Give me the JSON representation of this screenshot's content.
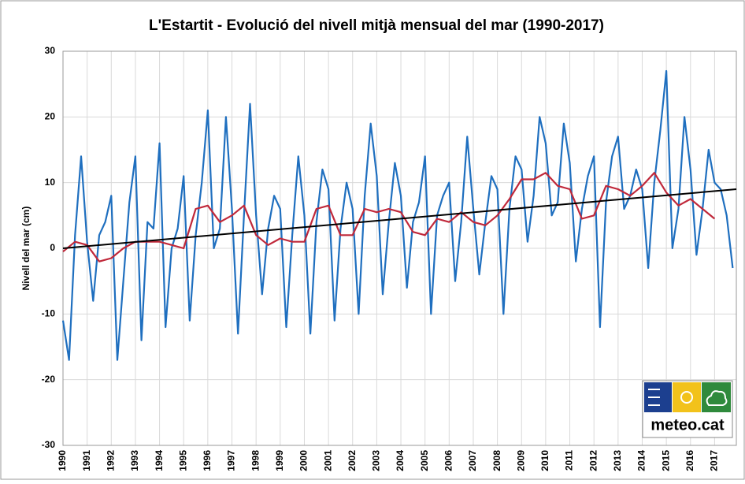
{
  "chart_data": {
    "type": "line",
    "title": "L'Estartit - Evolució del nivell mitjà mensual del mar (1990-2017)",
    "y_label": "Nivell del mar (cm)",
    "logo_text": "meteo.cat",
    "xlim": [
      1990,
      2017.9
    ],
    "ylim": [
      -30,
      30
    ],
    "yticks": [
      -30,
      -20,
      -10,
      0,
      10,
      20,
      30
    ],
    "xticks": [
      1990,
      1991,
      1992,
      1993,
      1994,
      1995,
      1996,
      1997,
      1998,
      1999,
      2000,
      2001,
      2002,
      2003,
      2004,
      2005,
      2006,
      2007,
      2008,
      2009,
      2010,
      2011,
      2012,
      2013,
      2014,
      2015,
      2016,
      2017
    ],
    "grid": true,
    "series": [
      {
        "color": "#1f6fbf",
        "width": 2.2,
        "x": [
          1990,
          1990.25,
          1990.5,
          1990.75,
          1991,
          1991.25,
          1991.5,
          1991.75,
          1992,
          1992.25,
          1992.5,
          1992.75,
          1993,
          1993.25,
          1993.5,
          1993.75,
          1994,
          1994.25,
          1994.5,
          1994.75,
          1995,
          1995.25,
          1995.5,
          1995.75,
          1996,
          1996.25,
          1996.5,
          1996.75,
          1997,
          1997.25,
          1997.5,
          1997.75,
          1998,
          1998.25,
          1998.5,
          1998.75,
          1999,
          1999.25,
          1999.5,
          1999.75,
          2000,
          2000.25,
          2000.5,
          2000.75,
          2001,
          2001.25,
          2001.5,
          2001.75,
          2002,
          2002.25,
          2002.5,
          2002.75,
          2003,
          2003.25,
          2003.5,
          2003.75,
          2004,
          2004.25,
          2004.5,
          2004.75,
          2005,
          2005.25,
          2005.5,
          2005.75,
          2006,
          2006.25,
          2006.5,
          2006.75,
          2007,
          2007.25,
          2007.5,
          2007.75,
          2008,
          2008.25,
          2008.5,
          2008.75,
          2009,
          2009.25,
          2009.5,
          2009.75,
          2010,
          2010.25,
          2010.5,
          2010.75,
          2011,
          2011.25,
          2011.5,
          2011.75,
          2012,
          2012.25,
          2012.5,
          2012.75,
          2013,
          2013.25,
          2013.5,
          2013.75,
          2014,
          2014.25,
          2014.5,
          2014.75,
          2015,
          2015.25,
          2015.5,
          2015.75,
          2016,
          2016.25,
          2016.5,
          2016.75,
          2017,
          2017.25,
          2017.5,
          2017.75
        ],
        "values": [
          -11,
          -17,
          2,
          14,
          1,
          -8,
          2,
          4,
          8,
          -17,
          -5,
          7,
          14,
          -14,
          4,
          3,
          16,
          -12,
          0,
          3,
          11,
          -11,
          2,
          10,
          21,
          0,
          3,
          20,
          6,
          -13,
          5,
          22,
          5,
          -7,
          3,
          8,
          6,
          -12,
          2,
          14,
          5,
          -13,
          4,
          12,
          9,
          -11,
          3,
          10,
          6,
          -10,
          8,
          19,
          11,
          -7,
          4,
          13,
          8,
          -6,
          4,
          7,
          14,
          -10,
          5,
          8,
          10,
          -5,
          4,
          17,
          6,
          -4,
          4,
          11,
          9,
          -10,
          6,
          14,
          12,
          1,
          8,
          20,
          16,
          5,
          7,
          19,
          13,
          -2,
          6,
          11,
          14,
          -12,
          7,
          14,
          17,
          6,
          8,
          12,
          9,
          -3,
          10,
          18,
          27,
          0,
          6,
          20,
          12,
          -1,
          6,
          15,
          10,
          9,
          5,
          -3
        ]
      },
      {
        "color": "#c0283a",
        "width": 2.2,
        "x": [
          1990,
          1990.5,
          1991,
          1991.5,
          1992,
          1992.5,
          1993,
          1993.5,
          1994,
          1994.5,
          1995,
          1995.5,
          1996,
          1996.5,
          1997,
          1997.5,
          1998,
          1998.5,
          1999,
          1999.5,
          2000,
          2000.5,
          2001,
          2001.5,
          2002,
          2002.5,
          2003,
          2003.5,
          2004,
          2004.5,
          2005,
          2005.5,
          2006,
          2006.5,
          2007,
          2007.5,
          2008,
          2008.5,
          2009,
          2009.5,
          2010,
          2010.5,
          2011,
          2011.5,
          2012,
          2012.5,
          2013,
          2013.5,
          2014,
          2014.5,
          2015,
          2015.5,
          2016,
          2016.5,
          2017
        ],
        "values": [
          -0.5,
          1,
          0.5,
          -2,
          -1.5,
          0,
          1,
          1,
          1,
          0.5,
          0,
          6,
          6.5,
          4,
          5,
          6.5,
          2,
          0.5,
          1.5,
          1,
          1,
          6,
          6.5,
          2,
          2,
          6,
          5.5,
          6,
          5.5,
          2.5,
          2,
          4.5,
          4,
          5.5,
          4,
          3.5,
          5,
          7.5,
          10.5,
          10.5,
          11.5,
          9.5,
          9,
          4.5,
          5,
          9.5,
          9,
          8,
          9.5,
          11.5,
          8.5,
          6.5,
          7.5,
          6,
          4.5
        ]
      },
      {
        "color": "#000000",
        "width": 2,
        "x": [
          1990,
          2017.9
        ],
        "values": [
          0,
          9
        ]
      }
    ]
  }
}
